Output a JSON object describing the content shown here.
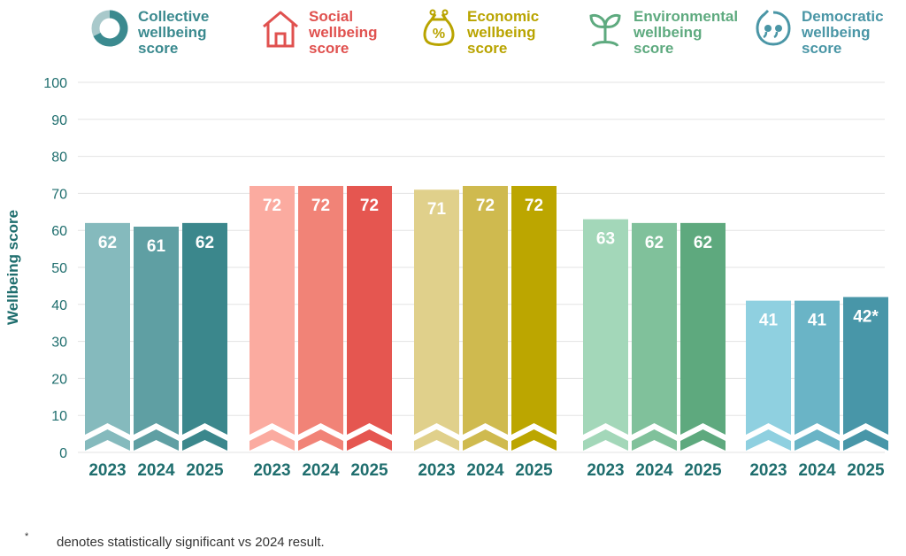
{
  "chart_data": {
    "type": "bar",
    "ylabel": "Wellbeing score",
    "ylim": [
      0,
      100
    ],
    "yticks": [
      0,
      10,
      20,
      30,
      40,
      50,
      60,
      70,
      80,
      90,
      100
    ],
    "grid": true,
    "groups": [
      {
        "name": "Collective wellbeing score",
        "label_lines": [
          "Collective",
          "wellbeing",
          "score"
        ],
        "icon": "donut-chart-icon",
        "label_color": "#3b8a8f",
        "bars": [
          {
            "year": "2023",
            "value": 62,
            "label": "62",
            "color": "#85babd"
          },
          {
            "year": "2024",
            "value": 61,
            "label": "61",
            "color": "#5f9fa3"
          },
          {
            "year": "2025",
            "value": 62,
            "label": "62",
            "color": "#3b878c"
          }
        ]
      },
      {
        "name": "Social wellbeing score",
        "label_lines": [
          "Social",
          "wellbeing",
          "score"
        ],
        "icon": "house-icon",
        "label_color": "#e0514f",
        "bars": [
          {
            "year": "2023",
            "value": 72,
            "label": "72",
            "color": "#fbaba0"
          },
          {
            "year": "2024",
            "value": 72,
            "label": "72",
            "color": "#f18377"
          },
          {
            "year": "2025",
            "value": 72,
            "label": "72",
            "color": "#e55650"
          }
        ]
      },
      {
        "name": "Economic wellbeing score",
        "label_lines": [
          "Economic",
          "wellbeing",
          "score"
        ],
        "icon": "money-pouch-icon",
        "label_color": "#b9a400",
        "bars": [
          {
            "year": "2023",
            "value": 71,
            "label": "71",
            "color": "#e0d08b"
          },
          {
            "year": "2024",
            "value": 72,
            "label": "72",
            "color": "#cfba4f"
          },
          {
            "year": "2025",
            "value": 72,
            "label": "72",
            "color": "#bca600"
          }
        ]
      },
      {
        "name": "Environmental wellbeing score",
        "label_lines": [
          "Environmental",
          "wellbeing",
          "score"
        ],
        "icon": "seedling-icon",
        "label_color": "#5eaa7f",
        "bars": [
          {
            "year": "2023",
            "value": 63,
            "label": "63",
            "color": "#a3d7b9"
          },
          {
            "year": "2024",
            "value": 62,
            "label": "62",
            "color": "#80c19b"
          },
          {
            "year": "2025",
            "value": 62,
            "label": "62",
            "color": "#5ea97e"
          }
        ]
      },
      {
        "name": "Democratic wellbeing score",
        "label_lines": [
          "Democratic",
          "wellbeing",
          "score"
        ],
        "icon": "speech-bubble-quote-icon",
        "label_color": "#4a96a6",
        "bars": [
          {
            "year": "2023",
            "value": 41,
            "label": "41",
            "color": "#8fd0e0"
          },
          {
            "year": "2024",
            "value": 41,
            "label": "41",
            "color": "#6ab4c6"
          },
          {
            "year": "2025",
            "value": 42,
            "label": "42*",
            "color": "#4896a8"
          }
        ]
      }
    ],
    "colors": {
      "axis_text": "#1f6e6e",
      "grid": "#e3e3e3",
      "year_label": "#1f6e6e"
    }
  },
  "footnote": {
    "marker": "*",
    "text": "denotes statistically significant vs 2024 result."
  }
}
